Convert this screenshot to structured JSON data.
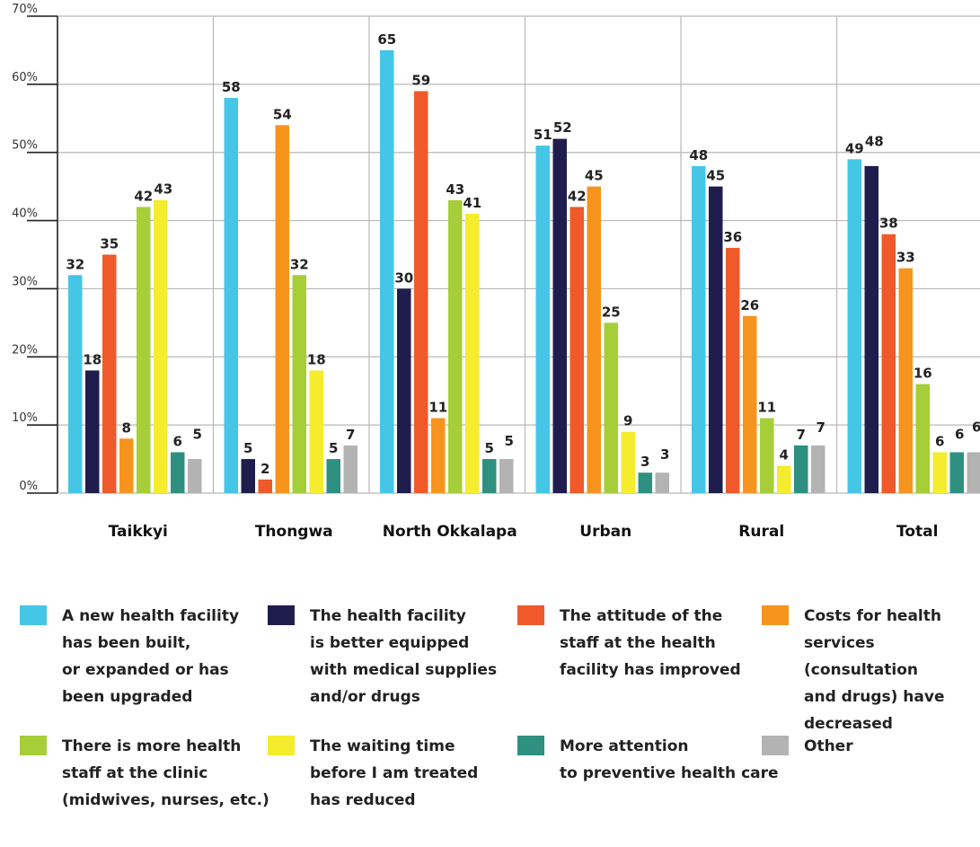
{
  "chart_data": {
    "type": "bar",
    "title": "",
    "xlabel": "",
    "ylabel": "",
    "ylim": [
      0,
      70
    ],
    "yticks": [
      "0%",
      "10%",
      "20%",
      "30%",
      "40%",
      "50%",
      "60%",
      "70%"
    ],
    "grid": true,
    "categories": [
      "Taikkyi",
      "Thongwa",
      "North Okkalapa",
      "Urban",
      "Rural",
      "Total"
    ],
    "series": [
      {
        "name": "A new health facility\nhas been built,\nor expanded or has\nbeen upgraded",
        "color": "#45c6e6",
        "values": [
          32,
          58,
          65,
          51,
          48,
          49
        ]
      },
      {
        "name": "The health facility\nis better equipped\nwith medical supplies\nand/or drugs",
        "color": "#1f1d4d",
        "values": [
          18,
          5,
          30,
          52,
          45,
          48
        ]
      },
      {
        "name": "The attitude of the\nstaff at the health\nfacility has improved",
        "color": "#f05a2a",
        "values": [
          35,
          2,
          59,
          42,
          36,
          38
        ]
      },
      {
        "name": "Costs for health\nservices (consultation\nand drugs) have\ndecreased",
        "color": "#f7941d",
        "values": [
          8,
          54,
          11,
          45,
          26,
          33
        ]
      },
      {
        "name": "There is more health\nstaff at the clinic\n(midwives, nurses, etc.)",
        "color": "#a6ce39",
        "values": [
          42,
          32,
          43,
          25,
          11,
          16
        ]
      },
      {
        "name": "The waiting time\nbefore I am treated\nhas reduced",
        "color": "#f4ec2c",
        "values": [
          43,
          18,
          41,
          9,
          4,
          6
        ]
      },
      {
        "name": "More attention\nto preventive health care",
        "color": "#2e9080",
        "values": [
          6,
          5,
          5,
          3,
          7,
          6
        ]
      },
      {
        "name": "Other",
        "color": "#b3b3b3",
        "values": [
          5,
          7,
          5,
          3,
          7,
          6
        ]
      }
    ],
    "legend_position": "bottom"
  }
}
